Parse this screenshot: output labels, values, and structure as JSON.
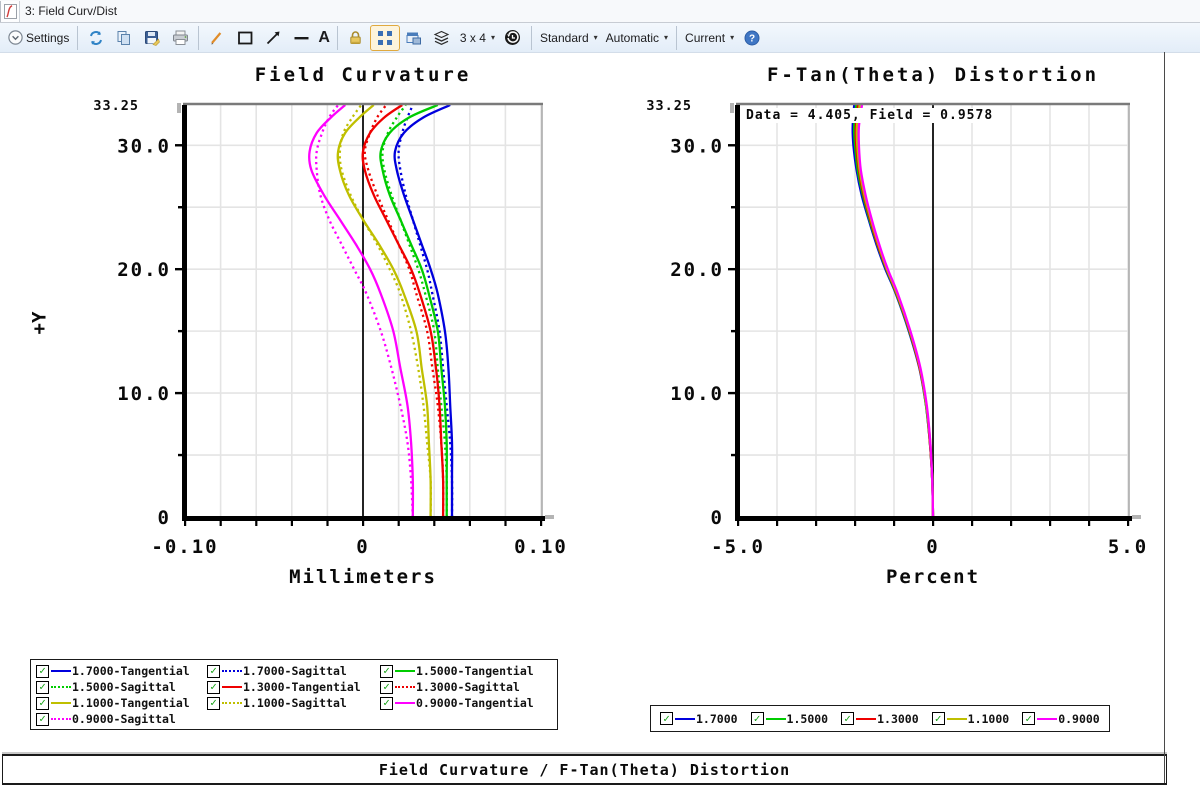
{
  "window": {
    "title": "3: Field Curv/Dist"
  },
  "toolbar": {
    "settings_label": "Settings",
    "text_tool_label": "A",
    "grid_label": "3 x 4",
    "standard_label": "Standard",
    "automatic_label": "Automatic",
    "current_label": "Current"
  },
  "colors": {
    "f17": "#0000dd",
    "f15": "#00cc00",
    "f13": "#ee0000",
    "f11": "#bfbf00",
    "f09": "#ff00ff",
    "grid": "#e4e4e4",
    "axis": "#000000",
    "frame_top": "#7a7a7a",
    "frame_right": "#ababab"
  },
  "chart_data": [
    {
      "type": "line",
      "title": "Field Curvature",
      "xlabel": "Millimeters",
      "ylabel": "+Y",
      "xlim": [
        -0.1,
        0.1
      ],
      "ylim": [
        0,
        33.25
      ],
      "x_grid_step": 0.02,
      "y_grid_step": 5,
      "grid": true,
      "x_ticks": [
        {
          "v": -0.1,
          "label": "-0.10"
        },
        {
          "v": 0,
          "label": "0"
        },
        {
          "v": 0.1,
          "label": "0.10"
        }
      ],
      "y_ticks": [
        {
          "v": 30,
          "label": "30.0"
        },
        {
          "v": 20,
          "label": "20.0"
        },
        {
          "v": 10,
          "label": "10.0"
        },
        {
          "v": 0,
          "label": "0"
        }
      ],
      "y_max_label": "33.25",
      "fields": [
        0,
        3,
        6,
        9,
        12,
        15,
        18,
        20,
        22,
        24,
        26,
        28,
        29.5,
        31,
        32.25,
        33.25
      ],
      "series": [
        {
          "name": "1.7000-Tangential",
          "color": "#0000dd",
          "style": "solid",
          "values": [
            0.05,
            0.05,
            0.05,
            0.049,
            0.048,
            0.046,
            0.042,
            0.038,
            0.033,
            0.028,
            0.023,
            0.019,
            0.018,
            0.023,
            0.034,
            0.049
          ]
        },
        {
          "name": "1.7000-Sagittal",
          "color": "#0000dd",
          "style": "dotted",
          "values": [
            0.05,
            0.05,
            0.049,
            0.047,
            0.045,
            0.043,
            0.039,
            0.036,
            0.032,
            0.028,
            0.024,
            0.021,
            0.02,
            0.022,
            0.025,
            0.028
          ]
        },
        {
          "name": "1.5000-Tangential",
          "color": "#00cc00",
          "style": "solid",
          "values": [
            0.047,
            0.047,
            0.047,
            0.046,
            0.044,
            0.042,
            0.037,
            0.033,
            0.027,
            0.021,
            0.015,
            0.011,
            0.01,
            0.015,
            0.026,
            0.042
          ]
        },
        {
          "name": "1.5000-Sagittal",
          "color": "#00cc00",
          "style": "dotted",
          "values": [
            0.047,
            0.047,
            0.046,
            0.044,
            0.042,
            0.04,
            0.035,
            0.031,
            0.026,
            0.021,
            0.016,
            0.012,
            0.011,
            0.014,
            0.019,
            0.024
          ]
        },
        {
          "name": "1.3000-Tangential",
          "color": "#ee0000",
          "style": "solid",
          "values": [
            0.045,
            0.045,
            0.044,
            0.043,
            0.041,
            0.038,
            0.032,
            0.027,
            0.02,
            0.013,
            0.006,
            0.001,
            0.0,
            0.004,
            0.012,
            0.022
          ]
        },
        {
          "name": "1.3000-Sagittal",
          "color": "#ee0000",
          "style": "dotted",
          "values": [
            0.045,
            0.045,
            0.044,
            0.042,
            0.039,
            0.036,
            0.03,
            0.026,
            0.02,
            0.014,
            0.008,
            0.003,
            0.001,
            0.004,
            0.008,
            0.013
          ]
        },
        {
          "name": "1.1000-Tangential",
          "color": "#bfbf00",
          "style": "solid",
          "values": [
            0.038,
            0.038,
            0.037,
            0.036,
            0.033,
            0.03,
            0.023,
            0.017,
            0.009,
            0.0,
            -0.008,
            -0.013,
            -0.014,
            -0.01,
            -0.002,
            0.006
          ]
        },
        {
          "name": "1.1000-Sagittal",
          "color": "#bfbf00",
          "style": "dotted",
          "values": [
            0.038,
            0.038,
            0.036,
            0.034,
            0.031,
            0.027,
            0.021,
            0.015,
            0.008,
            0.0,
            -0.007,
            -0.012,
            -0.013,
            -0.011,
            -0.006,
            -0.001
          ]
        },
        {
          "name": "0.9000-Tangential",
          "color": "#ff00ff",
          "style": "solid",
          "values": [
            0.028,
            0.028,
            0.027,
            0.025,
            0.021,
            0.017,
            0.01,
            0.004,
            -0.004,
            -0.013,
            -0.022,
            -0.029,
            -0.03,
            -0.026,
            -0.018,
            -0.01
          ]
        },
        {
          "name": "0.9000-Sagittal",
          "color": "#ff00ff",
          "style": "dotted",
          "values": [
            0.028,
            0.027,
            0.025,
            0.021,
            0.016,
            0.01,
            0.002,
            -0.005,
            -0.012,
            -0.019,
            -0.024,
            -0.026,
            -0.026,
            -0.023,
            -0.019,
            -0.014
          ]
        }
      ]
    },
    {
      "type": "line",
      "title": "F-Tan(Theta) Distortion",
      "xlabel": "Percent",
      "ylabel": "",
      "annotation": "Data = 4.405, Field = 0.9578",
      "xlim": [
        -5.0,
        5.0
      ],
      "ylim": [
        0,
        33.25
      ],
      "x_grid_step": 1.0,
      "y_grid_step": 5,
      "grid": true,
      "x_ticks": [
        {
          "v": -5.0,
          "label": "-5.0"
        },
        {
          "v": 0,
          "label": "0"
        },
        {
          "v": 5.0,
          "label": "5.0"
        }
      ],
      "y_ticks": [
        {
          "v": 30,
          "label": "30.0"
        },
        {
          "v": 20,
          "label": "20.0"
        },
        {
          "v": 10,
          "label": "10.0"
        },
        {
          "v": 0,
          "label": "0"
        }
      ],
      "y_max_label": "33.25",
      "fields": [
        0,
        3,
        6,
        9,
        12,
        15,
        18,
        20,
        22,
        24,
        26,
        28,
        30,
        31.5,
        33.25
      ],
      "series": [
        {
          "name": "1.7000",
          "color": "#0000dd",
          "style": "solid",
          "values": [
            0.0,
            -0.02,
            -0.08,
            -0.18,
            -0.35,
            -0.62,
            -0.95,
            -1.22,
            -1.45,
            -1.65,
            -1.83,
            -1.96,
            -2.04,
            -2.06,
            -2.02
          ]
        },
        {
          "name": "1.5000",
          "color": "#00cc00",
          "style": "solid",
          "values": [
            0.0,
            -0.02,
            -0.08,
            -0.18,
            -0.34,
            -0.61,
            -0.94,
            -1.2,
            -1.43,
            -1.63,
            -1.8,
            -1.93,
            -2.0,
            -2.02,
            -1.97
          ]
        },
        {
          "name": "1.3000",
          "color": "#ee0000",
          "style": "solid",
          "values": [
            0.0,
            -0.02,
            -0.08,
            -0.17,
            -0.34,
            -0.6,
            -0.93,
            -1.19,
            -1.42,
            -1.61,
            -1.78,
            -1.9,
            -1.97,
            -1.98,
            -1.92
          ]
        },
        {
          "name": "1.1000",
          "color": "#bfbf00",
          "style": "solid",
          "values": [
            0.0,
            -0.02,
            -0.07,
            -0.17,
            -0.33,
            -0.59,
            -0.92,
            -1.18,
            -1.4,
            -1.59,
            -1.76,
            -1.88,
            -1.94,
            -1.95,
            -1.88
          ]
        },
        {
          "name": "0.9000",
          "color": "#ff00ff",
          "style": "solid",
          "values": [
            0.0,
            -0.02,
            -0.07,
            -0.16,
            -0.32,
            -0.58,
            -0.9,
            -1.16,
            -1.38,
            -1.57,
            -1.73,
            -1.85,
            -1.9,
            -1.9,
            -1.82
          ]
        }
      ]
    }
  ],
  "legend_left": {
    "items": [
      {
        "label": "1.7000-Tangential",
        "color": "#0000dd",
        "style": "solid",
        "checked": true
      },
      {
        "label": "1.7000-Sagittal",
        "color": "#0000dd",
        "style": "dotted",
        "checked": true
      },
      {
        "label": "1.5000-Tangential",
        "color": "#00cc00",
        "style": "solid",
        "checked": true
      },
      {
        "label": "1.5000-Sagittal",
        "color": "#00cc00",
        "style": "dotted",
        "checked": true
      },
      {
        "label": "1.3000-Tangential",
        "color": "#ee0000",
        "style": "solid",
        "checked": true
      },
      {
        "label": "1.3000-Sagittal",
        "color": "#ee0000",
        "style": "dotted",
        "checked": true
      },
      {
        "label": "1.1000-Tangential",
        "color": "#bfbf00",
        "style": "solid",
        "checked": true
      },
      {
        "label": "1.1000-Sagittal",
        "color": "#bfbf00",
        "style": "dotted",
        "checked": true
      },
      {
        "label": "0.9000-Tangential",
        "color": "#ff00ff",
        "style": "solid",
        "checked": true
      },
      {
        "label": "0.9000-Sagittal",
        "color": "#ff00ff",
        "style": "dotted",
        "checked": true
      }
    ]
  },
  "legend_right": {
    "items": [
      {
        "label": "1.7000",
        "color": "#0000dd",
        "style": "solid",
        "checked": true
      },
      {
        "label": "1.5000",
        "color": "#00cc00",
        "style": "solid",
        "checked": true
      },
      {
        "label": "1.3000",
        "color": "#ee0000",
        "style": "solid",
        "checked": true
      },
      {
        "label": "1.1000",
        "color": "#bfbf00",
        "style": "solid",
        "checked": true
      },
      {
        "label": "0.9000",
        "color": "#ff00ff",
        "style": "solid",
        "checked": true
      }
    ]
  },
  "footer": {
    "title": "Field Curvature / F-Tan(Theta) Distortion"
  }
}
